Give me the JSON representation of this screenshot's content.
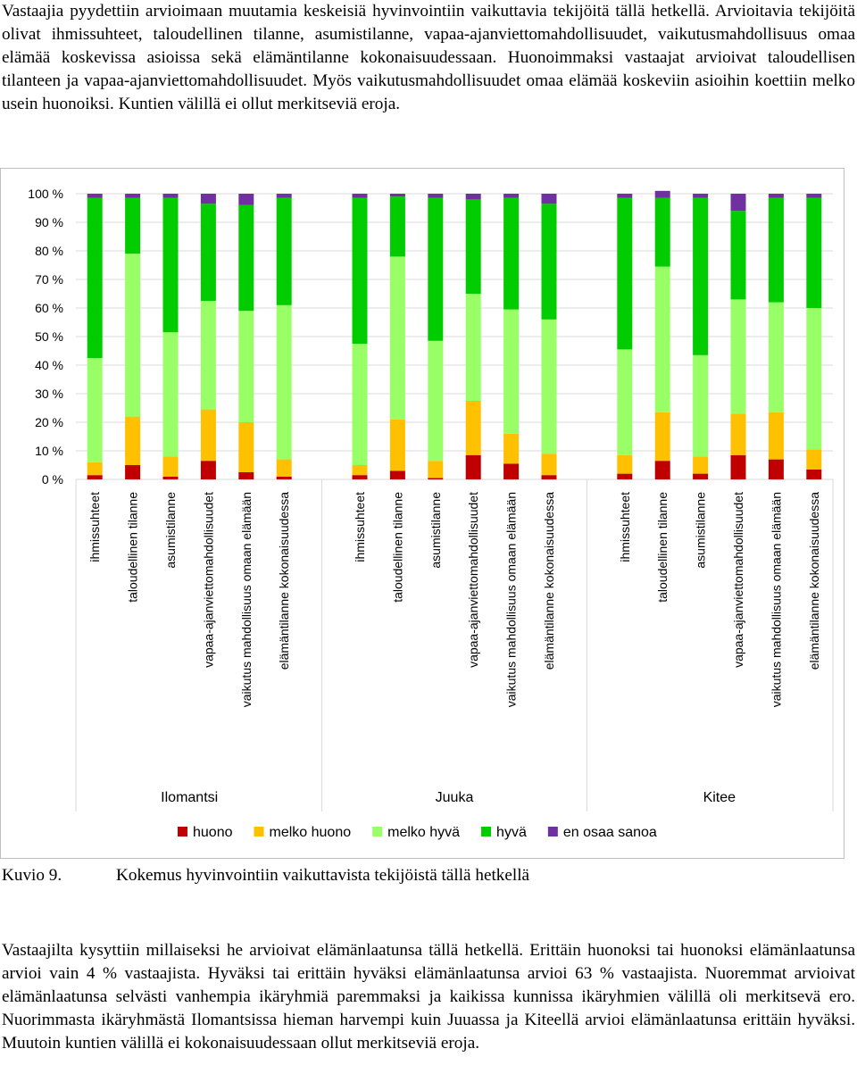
{
  "text": {
    "intro": "Vastaajia pyydettiin arvioimaan muutamia keskeisiä hyvinvointiin vaikuttavia tekijöitä tällä hetkellä. Arvioitavia tekijöitä olivat ihmissuhteet, taloudellinen tilanne, asumistilanne, vapaa-ajanviettomahdollisuudet, vaikutusmahdollisuus omaa elämää koskevissa asioissa sekä elämäntilanne kokonaisuudessaan. Huonoimmaksi vastaajat arvioivat taloudellisen tilanteen ja vapaa-ajanviettomahdollisuudet. Myös vaikutusmahdollisuudet omaa elämää koskeviin asioihin koettiin melko usein huonoiksi. Kuntien välillä ei ollut merkitseviä eroja.",
    "caption_number": "Kuvio 9.",
    "caption_text": "Kokemus hyvinvointiin vaikuttavista tekijöistä tällä hetkellä",
    "outro": "Vastaajilta kysyttiin millaiseksi he arvioivat elämänlaatunsa tällä hetkellä. Erittäin huonoksi tai huonoksi elämänlaatunsa arvioi vain 4 % vastaajista. Hyväksi tai erittäin hyväksi elämänlaatunsa arvioi 63 % vastaajista. Nuoremmat arvioivat elämänlaatunsa selvästi vanhempia ikäryhmiä paremmaksi ja kaikissa kunnissa ikäryhmien välillä oli merkitsevä ero. Nuorimmasta ikäryhmästä Ilomantsissa hieman harvempi kuin Juuassa ja Kiteellä arvioi elämänlaatunsa erittäin hyväksi. Muutoin kuntien välillä ei kokonaisuudessaan ollut merkitseviä eroja."
  },
  "chart_data": {
    "type": "bar",
    "stacked": true,
    "percent": true,
    "ylim": [
      0,
      100
    ],
    "yticks": [
      "0 %",
      "10 %",
      "20 %",
      "30 %",
      "40 %",
      "50 %",
      "60 %",
      "70 %",
      "80 %",
      "90 %",
      "100 %"
    ],
    "legend_position": "bottom",
    "groups": [
      "Ilomantsi",
      "Juuka",
      "Kitee"
    ],
    "categories": [
      "ihmissuhteet",
      "taloudellinen tilanne",
      "asumistilanne",
      "vapaa-ajanviettomahdollisuudet",
      "vaikutus mahdollisuus omaan elämään",
      "elämäntilanne kokonaisuudessa"
    ],
    "series": [
      {
        "name": "huono",
        "color": "#c00000",
        "values": [
          [
            1.5,
            5,
            1,
            6.5,
            2.5,
            1
          ],
          [
            1.5,
            3,
            0.5,
            8.5,
            5.5,
            1.5
          ],
          [
            2,
            6.5,
            2,
            8.5,
            7,
            3.5
          ]
        ]
      },
      {
        "name": "melko huono",
        "color": "#ffc000",
        "values": [
          [
            4.5,
            17,
            7,
            18,
            17.5,
            6
          ],
          [
            3.5,
            18,
            6,
            19,
            10.5,
            7.5
          ],
          [
            6.5,
            17,
            6,
            14.5,
            16.5,
            7
          ]
        ]
      },
      {
        "name": "melko hyvä",
        "color": "#99ff66",
        "values": [
          [
            36.5,
            57,
            43.5,
            38,
            39,
            54
          ],
          [
            42.5,
            57,
            42,
            37.5,
            43.5,
            47
          ],
          [
            37,
            51,
            35.5,
            40,
            38.5,
            49.5
          ]
        ]
      },
      {
        "name": "hyvä",
        "color": "#00cc00",
        "values": [
          [
            56,
            19.5,
            47,
            34,
            37,
            37.5
          ],
          [
            51,
            21,
            50,
            33,
            39,
            40.5
          ],
          [
            53,
            24,
            55,
            31,
            36.5,
            38.5
          ]
        ]
      },
      {
        "name": "en osaa sanoa",
        "color": "#7030a0",
        "values": [
          [
            1.5,
            1.5,
            1.5,
            3.5,
            4,
            1.5
          ],
          [
            1.5,
            1,
            1.5,
            2,
            1.5,
            3.5
          ],
          [
            1.5,
            2.5,
            1.5,
            6,
            1.5,
            1.5
          ]
        ]
      }
    ]
  }
}
